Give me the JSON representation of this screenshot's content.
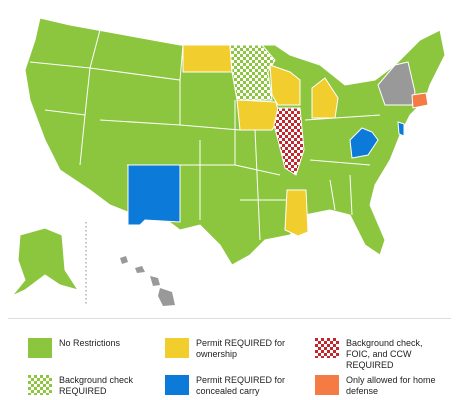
{
  "legend": [
    {
      "label": "No Restrictions",
      "color": "#8cc63f",
      "style": "solid"
    },
    {
      "label": "Permit REQUIRED for ownership",
      "color": "#f2cd2e",
      "style": "solid"
    },
    {
      "label": "Background check, FOIC, and CCW REQUIRED",
      "color": "#c1272d",
      "style": "checkered"
    },
    {
      "label": "Background check REQUIRED",
      "color": "#8cc63f",
      "style": "checkered"
    },
    {
      "label": "Permit REQUIRED for concealed carry",
      "color": "#0b7ad8",
      "style": "solid"
    },
    {
      "label": "Only allowed for home defense",
      "color": "#f47b43",
      "style": "solid"
    }
  ]
}
